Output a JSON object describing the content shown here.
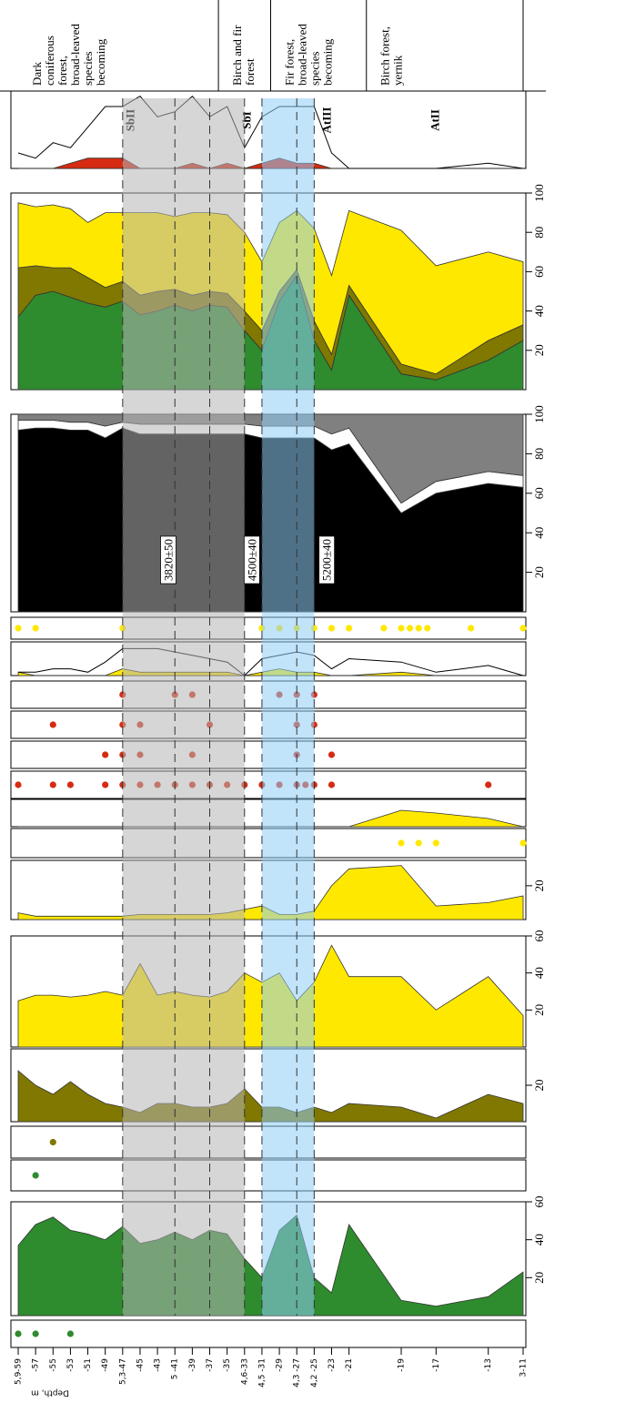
{
  "chart_data": [
    {
      "type": "zones",
      "xlabel": "Depth, m",
      "xlim": [
        5.9,
        3.0
      ],
      "xticks": [
        {
          "value": 5.9,
          "label": "5,9-59"
        },
        {
          "value": 5.8,
          "label": "-57"
        },
        {
          "value": 5.7,
          "label": "-55"
        },
        {
          "value": 5.6,
          "label": "-53"
        },
        {
          "value": 5.5,
          "label": "-51"
        },
        {
          "value": 5.4,
          "label": "-49"
        },
        {
          "value": 5.3,
          "label": "5,3-47"
        },
        {
          "value": 5.2,
          "label": "-45"
        },
        {
          "value": 5.1,
          "label": "-43"
        },
        {
          "value": 5.0,
          "label": "5 -41"
        },
        {
          "value": 4.9,
          "label": "-39"
        },
        {
          "value": 4.8,
          "label": "-37"
        },
        {
          "value": 4.7,
          "label": "-35"
        },
        {
          "value": 4.6,
          "label": "4,6-33"
        },
        {
          "value": 4.5,
          "label": "4,5 -31"
        },
        {
          "value": 4.4,
          "label": "-29"
        },
        {
          "value": 4.3,
          "label": "4,3 -27"
        },
        {
          "value": 4.2,
          "label": "4,2 -25"
        },
        {
          "value": 4.1,
          "label": "-23"
        },
        {
          "value": 4.0,
          "label": "-21"
        },
        {
          "value": 3.7,
          "label": "-19"
        },
        {
          "value": 3.5,
          "label": "-17"
        },
        {
          "value": 3.2,
          "label": "-13"
        },
        {
          "value": 3.0,
          "label": "3-11"
        }
      ],
      "zones": [
        {
          "lines": [
            "Dark",
            "coniferous",
            "forest,",
            "broad-leaved",
            "species",
            "becoming"
          ],
          "from": 5.9,
          "to": 4.75
        },
        {
          "lines": [
            "Birch and fir",
            "forest"
          ],
          "from": 4.75,
          "to": 4.45
        },
        {
          "lines": [
            "Fir forest,",
            "broad-leaved",
            "species",
            "becoming"
          ],
          "from": 4.45,
          "to": 3.9
        },
        {
          "lines": [
            "Birch forest,",
            "yernik"
          ],
          "from": 3.9,
          "to": 3.0
        }
      ],
      "subzones": [
        {
          "label": "SbII",
          "x": 5.25
        },
        {
          "label": "SbI",
          "x": 4.58
        },
        {
          "label": "AtIII",
          "x": 4.12
        },
        {
          "label": "AtII",
          "x": 3.5
        }
      ],
      "bands": [
        {
          "from": 5.3,
          "to": 4.6,
          "color": "#b4b4b4"
        },
        {
          "from": 4.5,
          "to": 4.2,
          "color": "#8fcdf5"
        }
      ],
      "dashes": [
        5.3,
        5.0,
        4.8,
        4.6,
        4.5,
        4.3,
        4.2
      ]
    },
    {
      "type": "area",
      "ylim": [
        0,
        15
      ],
      "stacked": false,
      "x": [
        5.9,
        5.8,
        5.7,
        5.6,
        5.5,
        5.4,
        5.3,
        5.2,
        5.1,
        5.0,
        4.9,
        4.8,
        4.7,
        4.6,
        4.5,
        4.4,
        4.3,
        4.2,
        4.1,
        4.0,
        3.7,
        3.5,
        3.2,
        3.0
      ],
      "series": [
        {
          "color": "#d62b12",
          "values": [
            0,
            0,
            0,
            1,
            2,
            2,
            2,
            0,
            0,
            0,
            1,
            0,
            1,
            0,
            1,
            2,
            1,
            1,
            0,
            0,
            0,
            0,
            0,
            0
          ]
        },
        {
          "color": "#000000",
          "mode": "line",
          "values": [
            3,
            2,
            5,
            4,
            8,
            12,
            12,
            14,
            10,
            11,
            14,
            10,
            12,
            4,
            10,
            12,
            12,
            12,
            3,
            0,
            0,
            0,
            1,
            0
          ]
        }
      ]
    },
    {
      "type": "area",
      "ylim": [
        0,
        100
      ],
      "yticks": [
        20,
        40,
        60,
        80,
        100
      ],
      "stacked": true,
      "x": [
        5.9,
        5.8,
        5.7,
        5.6,
        5.5,
        5.4,
        5.3,
        5.2,
        5.1,
        5.0,
        4.9,
        4.8,
        4.7,
        4.6,
        4.5,
        4.4,
        4.3,
        4.2,
        4.1,
        4.0,
        3.7,
        3.5,
        3.2,
        3.0
      ],
      "series": [
        {
          "color": "#2e8b2e",
          "values": [
            37,
            48,
            50,
            47,
            44,
            42,
            45,
            38,
            40,
            43,
            40,
            43,
            42,
            30,
            20,
            45,
            58,
            25,
            10,
            48,
            8,
            5,
            15,
            25
          ]
        },
        {
          "color": "#807800",
          "values": [
            25,
            15,
            12,
            15,
            13,
            10,
            10,
            10,
            10,
            8,
            8,
            7,
            7,
            10,
            10,
            5,
            3,
            10,
            8,
            5,
            5,
            3,
            10,
            8
          ]
        },
        {
          "color": "#ffe800",
          "values": [
            33,
            30,
            32,
            30,
            28,
            38,
            35,
            42,
            40,
            37,
            42,
            40,
            40,
            40,
            35,
            35,
            30,
            47,
            40,
            38,
            68,
            55,
            45,
            32
          ]
        }
      ]
    },
    {
      "type": "area",
      "ylim": [
        0,
        100
      ],
      "yticks": [
        20,
        40,
        60,
        80,
        100
      ],
      "stacked": true,
      "x": [
        5.9,
        5.8,
        5.7,
        5.6,
        5.5,
        5.4,
        5.3,
        5.2,
        5.1,
        5.0,
        4.9,
        4.8,
        4.7,
        4.6,
        4.5,
        4.4,
        4.3,
        4.2,
        4.1,
        4.0,
        3.7,
        3.5,
        3.2,
        3.0
      ],
      "series": [
        {
          "color": "#000000",
          "values": [
            92,
            93,
            93,
            92,
            92,
            88,
            93,
            90,
            90,
            90,
            90,
            90,
            90,
            90,
            88,
            88,
            88,
            88,
            82,
            85,
            50,
            60,
            65,
            63
          ]
        },
        {
          "color": "#ffffff",
          "values": [
            5,
            4,
            4,
            4,
            4,
            6,
            3,
            5,
            5,
            5,
            5,
            5,
            5,
            5,
            6,
            6,
            6,
            6,
            8,
            8,
            5,
            6,
            6,
            6
          ]
        },
        {
          "color": "#808080",
          "values": [
            3,
            3,
            3,
            4,
            4,
            6,
            4,
            5,
            5,
            5,
            5,
            5,
            5,
            5,
            6,
            6,
            6,
            6,
            10,
            7,
            45,
            34,
            29,
            31
          ]
        }
      ],
      "annotations": [
        {
          "text": "3820±50",
          "x": 5.03
        },
        {
          "text": "4500±40",
          "x": 4.55
        },
        {
          "text": "5200±40",
          "x": 4.12
        }
      ]
    },
    {
      "type": "dots",
      "color": "#ffe800",
      "x": [
        5.9,
        5.8,
        5.3,
        4.5,
        4.4,
        4.3,
        4.2,
        4.1,
        4.0,
        3.8,
        3.7,
        3.65,
        3.6,
        3.55,
        3.3,
        3.0
      ]
    },
    {
      "type": "area",
      "ylim": [
        0,
        10
      ],
      "stacked": false,
      "x": [
        5.9,
        5.8,
        5.7,
        5.6,
        5.5,
        5.4,
        5.3,
        5.2,
        5.1,
        5.0,
        4.9,
        4.8,
        4.7,
        4.6,
        4.5,
        4.4,
        4.3,
        4.2,
        4.1,
        4.0,
        3.7,
        3.5,
        3.2,
        3.0
      ],
      "series": [
        {
          "color": "#ffe800",
          "values": [
            1,
            0,
            0,
            0,
            0,
            0,
            2,
            1,
            1,
            1,
            1,
            1,
            1,
            0,
            1,
            2,
            1,
            1,
            0,
            0,
            1,
            0,
            0,
            0
          ]
        },
        {
          "color": "#000000",
          "mode": "line",
          "values": [
            1,
            1,
            2,
            2,
            1,
            4,
            8,
            8,
            8,
            7,
            6,
            5,
            4,
            0,
            5,
            6,
            7,
            6,
            2,
            5,
            4,
            1,
            3,
            0
          ]
        }
      ]
    },
    {
      "type": "dots",
      "color": "#d62b12",
      "x": [
        5.3,
        5.0,
        4.9,
        4.4,
        4.3,
        4.2
      ]
    },
    {
      "type": "dots",
      "color": "#d62b12",
      "x": [
        5.7,
        5.3,
        5.2,
        4.8,
        4.3,
        4.2
      ]
    },
    {
      "type": "dots",
      "color": "#d62b12",
      "x": [
        5.4,
        5.3,
        5.2,
        4.9,
        4.3,
        4.1
      ]
    },
    {
      "type": "dots",
      "color": "#d62b12",
      "x": [
        5.9,
        5.7,
        5.6,
        5.4,
        5.3,
        5.2,
        5.1,
        5.0,
        4.9,
        4.8,
        4.7,
        4.6,
        4.5,
        4.4,
        4.3,
        4.25,
        4.2,
        4.1,
        3.2
      ]
    },
    {
      "type": "area",
      "ylim": [
        0,
        10
      ],
      "stacked": false,
      "x": [
        5.9,
        5.8,
        5.7,
        5.6,
        5.5,
        5.4,
        5.3,
        5.2,
        5.1,
        5.0,
        4.9,
        4.8,
        4.7,
        4.6,
        4.5,
        4.4,
        4.3,
        4.2,
        4.1,
        4.0,
        3.7,
        3.5,
        3.2,
        3.0
      ],
      "series": [
        {
          "color": "#ffe800",
          "values": [
            0,
            0,
            0,
            0,
            0,
            0,
            0,
            0,
            0,
            0,
            0,
            0,
            0,
            0,
            0,
            0,
            0,
            0,
            0,
            0,
            6,
            5,
            3,
            0
          ]
        }
      ]
    },
    {
      "type": "dots",
      "color": "#ffe800",
      "x": [
        3.7,
        3.6,
        3.5,
        3.0
      ]
    },
    {
      "type": "area",
      "ylim": [
        0,
        35
      ],
      "yticks": [
        20
      ],
      "stacked": false,
      "x": [
        5.9,
        5.8,
        5.7,
        5.6,
        5.5,
        5.4,
        5.3,
        5.2,
        5.1,
        5.0,
        4.9,
        4.8,
        4.7,
        4.6,
        4.5,
        4.4,
        4.3,
        4.2,
        4.1,
        4.0,
        3.7,
        3.5,
        3.2,
        3.0
      ],
      "series": [
        {
          "color": "#ffe800",
          "values": [
            4,
            2,
            2,
            2,
            2,
            2,
            2,
            3,
            3,
            3,
            3,
            3,
            4,
            6,
            8,
            3,
            3,
            5,
            20,
            30,
            32,
            8,
            10,
            14
          ]
        }
      ]
    },
    {
      "type": "area",
      "ylim": [
        0,
        60
      ],
      "yticks": [
        20,
        40,
        60
      ],
      "stacked": false,
      "x": [
        5.9,
        5.8,
        5.7,
        5.6,
        5.5,
        5.4,
        5.3,
        5.2,
        5.1,
        5.0,
        4.9,
        4.8,
        4.7,
        4.6,
        4.5,
        4.4,
        4.3,
        4.2,
        4.1,
        4.0,
        3.7,
        3.5,
        3.2,
        3.0
      ],
      "series": [
        {
          "color": "#ffe800",
          "values": [
            25,
            28,
            28,
            27,
            28,
            30,
            28,
            45,
            28,
            30,
            28,
            27,
            30,
            40,
            35,
            40,
            25,
            35,
            55,
            38,
            38,
            20,
            38,
            17
          ]
        }
      ]
    },
    {
      "type": "area",
      "ylim": [
        0,
        40
      ],
      "yticks": [
        20
      ],
      "stacked": false,
      "x": [
        5.9,
        5.8,
        5.7,
        5.6,
        5.5,
        5.4,
        5.3,
        5.2,
        5.1,
        5.0,
        4.9,
        4.8,
        4.7,
        4.6,
        4.5,
        4.4,
        4.3,
        4.2,
        4.1,
        4.0,
        3.7,
        3.5,
        3.2,
        3.0
      ],
      "series": [
        {
          "color": "#807800",
          "values": [
            28,
            20,
            15,
            22,
            15,
            10,
            8,
            5,
            10,
            10,
            8,
            8,
            10,
            18,
            8,
            8,
            5,
            8,
            5,
            10,
            8,
            2,
            15,
            10
          ]
        }
      ]
    },
    {
      "type": "dots",
      "color": "#807800",
      "x": [
        5.7
      ]
    },
    {
      "type": "dots",
      "color": "#2e8b2e",
      "x": [
        5.8
      ]
    },
    {
      "type": "area",
      "ylim": [
        0,
        60
      ],
      "yticks": [
        20,
        40,
        60
      ],
      "stacked": false,
      "x": [
        5.9,
        5.8,
        5.7,
        5.6,
        5.5,
        5.4,
        5.3,
        5.2,
        5.1,
        5.0,
        4.9,
        4.8,
        4.7,
        4.6,
        4.5,
        4.4,
        4.3,
        4.2,
        4.1,
        4.0,
        3.7,
        3.5,
        3.2,
        3.0
      ],
      "series": [
        {
          "color": "#2e8b2e",
          "values": [
            37,
            48,
            52,
            45,
            43,
            40,
            47,
            38,
            40,
            44,
            40,
            45,
            43,
            30,
            20,
            45,
            53,
            20,
            12,
            48,
            8,
            5,
            10,
            23
          ]
        }
      ]
    },
    {
      "type": "dots",
      "color": "#2e8b2e",
      "x": [
        5.9,
        5.8,
        5.6
      ]
    }
  ]
}
